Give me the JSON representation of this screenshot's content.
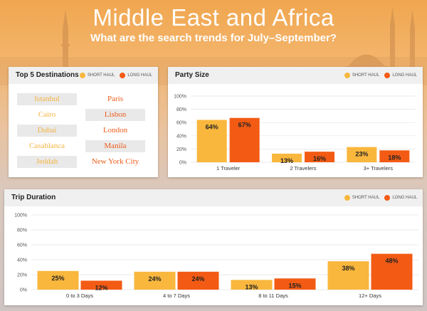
{
  "header": {
    "title": "Middle East and Africa",
    "subtitle": "What are the search trends for July–September?"
  },
  "legend": {
    "short_label": "SHORT HAUL",
    "long_label": "LONG HAUL"
  },
  "colors": {
    "short_haul": "#f9b73d",
    "long_haul": "#f35b14",
    "grid": "#e3e3e3"
  },
  "destinations": {
    "title": "Top 5 Destinations",
    "short_haul": [
      "Istanbul",
      "Cairo",
      "Dubai",
      "Casablanca",
      "Jeddah"
    ],
    "long_haul": [
      "Paris",
      "Lisbon",
      "London",
      "Manila",
      "New York City"
    ]
  },
  "party_size": {
    "title": "Party Size",
    "chart_data": {
      "type": "bar",
      "categories": [
        "1 Traveler",
        "2 Travelers",
        "3+ Travelers"
      ],
      "series": [
        {
          "name": "SHORT HAUL",
          "values": [
            64,
            13,
            23
          ]
        },
        {
          "name": "LONG HAUL",
          "values": [
            67,
            16,
            18
          ]
        }
      ],
      "yticks": [
        "100%",
        "80%",
        "60%",
        "40%",
        "20%",
        "0%"
      ],
      "ylim": [
        0,
        100
      ],
      "data_labels": [
        [
          "64%",
          "13%",
          "23%"
        ],
        [
          "67%",
          "16%",
          "18%"
        ]
      ]
    }
  },
  "trip_duration": {
    "title": "Trip Duration",
    "chart_data": {
      "type": "bar",
      "categories": [
        "0 to 3 Days",
        "4 to 7 Days",
        "8 to 11 Days",
        "12+ Days"
      ],
      "series": [
        {
          "name": "SHORT HAUL",
          "values": [
            25,
            24,
            13,
            38
          ]
        },
        {
          "name": "LONG HAUL",
          "values": [
            12,
            24,
            15,
            48
          ]
        }
      ],
      "yticks": [
        "100%",
        "80%",
        "60%",
        "40%",
        "20%",
        "0%"
      ],
      "ylim": [
        0,
        100
      ],
      "data_labels": [
        [
          "25%",
          "24%",
          "13%",
          "38%"
        ],
        [
          "12%",
          "24%",
          "15%",
          "48%"
        ]
      ]
    }
  }
}
